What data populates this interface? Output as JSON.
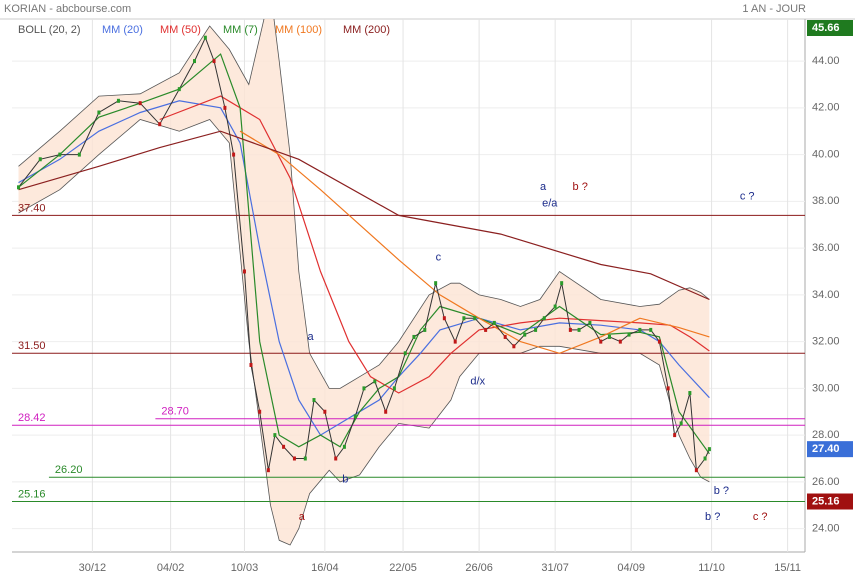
{
  "chart_data": {
    "type": "line",
    "title": "KORIAN - abcbourse.com",
    "period": "1 AN - JOUR",
    "xlim": [
      -37,
      328
    ],
    "ylim": [
      23.0,
      45.8
    ],
    "xticks": [
      {
        "value": 0,
        "label": "30/12"
      },
      {
        "value": 36,
        "label": "04/02"
      },
      {
        "value": 70,
        "label": "10/03"
      },
      {
        "value": 107,
        "label": "16/04"
      },
      {
        "value": 143,
        "label": "22/05"
      },
      {
        "value": 178,
        "label": "26/06"
      },
      {
        "value": 213,
        "label": "31/07"
      },
      {
        "value": 248,
        "label": "04/09"
      },
      {
        "value": 285,
        "label": "11/10"
      },
      {
        "value": 320,
        "label": "15/11"
      }
    ],
    "yticks": [
      {
        "value": 24,
        "label": "24.00"
      },
      {
        "value": 26,
        "label": "26.00"
      },
      {
        "value": 28,
        "label": "28.00"
      },
      {
        "value": 30,
        "label": "30.00"
      },
      {
        "value": 32,
        "label": "32.00"
      },
      {
        "value": 34,
        "label": "34.00"
      },
      {
        "value": 36,
        "label": "36.00"
      },
      {
        "value": 38,
        "label": "38.00"
      },
      {
        "value": 40,
        "label": "40.00"
      },
      {
        "value": 42,
        "label": "42.00"
      },
      {
        "value": 44,
        "label": "44.00"
      }
    ],
    "grid": true,
    "bands": {
      "name": "BOLL (20, 2)",
      "color": "#555555",
      "fill": "#fde3d3",
      "x": [
        -34,
        -15,
        3,
        22,
        40,
        54,
        63,
        72,
        82,
        86,
        91,
        95,
        100,
        109,
        114,
        123,
        132,
        141,
        155,
        165,
        169,
        178,
        188,
        197,
        206,
        215,
        234,
        252,
        261,
        270,
        275,
        280,
        284
      ],
      "upper": [
        39.5,
        41,
        42.5,
        42.6,
        43.5,
        45.5,
        44.5,
        43,
        47,
        44,
        40,
        35,
        31.5,
        30,
        30,
        30.5,
        31,
        32,
        34,
        34.5,
        34.5,
        34,
        33.8,
        33.5,
        33.8,
        35,
        33.8,
        33.5,
        33.6,
        34.2,
        34.3,
        34.1,
        33.8
      ],
      "lower": [
        37.5,
        38.5,
        40,
        41.5,
        41,
        41.5,
        40.5,
        32,
        25,
        23.5,
        23.3,
        24,
        25.5,
        26.5,
        26,
        26.3,
        27.5,
        28.5,
        28.3,
        29.5,
        30.5,
        31.5,
        31.5,
        31.5,
        31.8,
        31.8,
        31.5,
        31.5,
        31,
        28,
        27,
        26.2,
        26
      ]
    },
    "series": [
      {
        "name": "MM (20)",
        "color": "#4a6fe0",
        "x": [
          -34,
          -15,
          3,
          22,
          40,
          59,
          68,
          77,
          86,
          95,
          105,
          114,
          123,
          132,
          141,
          151,
          160,
          178,
          197,
          215,
          234,
          252,
          261,
          270,
          284
        ],
        "values": [
          38.8,
          39.8,
          41.0,
          41.8,
          42.3,
          42.0,
          40.5,
          36,
          32,
          29.5,
          28,
          28.5,
          29,
          29.5,
          30.5,
          31.5,
          32.5,
          33,
          32.5,
          32.8,
          32.7,
          32.5,
          32.0,
          31.0,
          29.6
        ]
      },
      {
        "name": "MM (50)",
        "color": "#e03030",
        "x": [
          31,
          59,
          77,
          91,
          105,
          118,
          128,
          141,
          155,
          165,
          178,
          197,
          215,
          234,
          252,
          266,
          275,
          284
        ],
        "values": [
          41.5,
          42.5,
          41.5,
          39,
          35,
          32,
          30.5,
          29.8,
          30.5,
          31.5,
          32.5,
          32.8,
          33,
          32.9,
          32.8,
          32.7,
          32.2,
          31.6
        ]
      },
      {
        "name": "MM (7)",
        "color": "#2a8a2a",
        "x": [
          -34,
          -15,
          3,
          22,
          40,
          59,
          68,
          77,
          86,
          95,
          105,
          114,
          123,
          132,
          141,
          151,
          160,
          178,
          197,
          215,
          234,
          252,
          261,
          270,
          284
        ],
        "values": [
          38.6,
          40,
          41.6,
          42.2,
          42.8,
          44.3,
          42,
          32,
          28,
          27.5,
          28,
          27.5,
          29,
          30,
          30.5,
          32.5,
          33.5,
          33,
          32.3,
          33.5,
          32.3,
          32.4,
          32.2,
          29,
          27.2
        ]
      },
      {
        "name": "MM (100)",
        "color": "#f07820",
        "x": [
          68,
          86,
          105,
          123,
          141,
          160,
          178,
          197,
          215,
          234,
          252,
          270,
          284
        ],
        "values": [
          41,
          40,
          38.5,
          37,
          35.5,
          34,
          33,
          32,
          31.5,
          32.2,
          33,
          32.6,
          32.2
        ]
      },
      {
        "name": "MM (200)",
        "color": "#8b2020",
        "x": [
          -34,
          3,
          31,
          59,
          95,
          141,
          188,
          234,
          257,
          284
        ],
        "values": [
          38.5,
          39.5,
          40.3,
          41,
          39.8,
          37.4,
          36.6,
          35.3,
          34.9,
          33.8
        ]
      }
    ],
    "price": {
      "color": "#333333",
      "x": [
        -34,
        -24,
        -15,
        -6,
        3,
        12,
        22,
        31,
        40,
        47,
        52,
        56,
        61,
        65,
        70,
        73,
        77,
        81,
        84,
        88,
        93,
        98,
        102,
        107,
        112,
        116,
        121,
        125,
        130,
        135,
        139,
        144,
        148,
        153,
        158,
        162,
        167,
        171,
        176,
        181,
        185,
        190,
        194,
        199,
        204,
        208,
        213,
        216,
        220,
        224,
        229,
        234,
        238,
        243,
        247,
        252,
        257,
        261,
        265,
        268,
        271,
        275,
        278,
        282,
        284
      ],
      "values": [
        38.6,
        39.8,
        40,
        40,
        41.8,
        42.3,
        42.2,
        41.3,
        42.8,
        44,
        45,
        44,
        42,
        40,
        35,
        31,
        29,
        26.5,
        28,
        27.5,
        27,
        27,
        29.5,
        29,
        27,
        27.5,
        28.8,
        30,
        30.3,
        29,
        30,
        31.5,
        32.2,
        32.5,
        34.5,
        33,
        32,
        33,
        33,
        32.5,
        32.8,
        32.2,
        31.8,
        32.3,
        32.5,
        33,
        33.5,
        34.5,
        32.5,
        32.5,
        32.8,
        32,
        32.2,
        32,
        32.3,
        32.5,
        32.5,
        32,
        30,
        28,
        28.5,
        29.8,
        26.5,
        27,
        27.4
      ]
    },
    "levels": [
      {
        "value": 37.4,
        "label": "37.40",
        "color": "#8b1a1a"
      },
      {
        "value": 31.5,
        "label": "31.50",
        "color": "#8b1a1a"
      },
      {
        "value": 28.42,
        "label": "28.42",
        "color": "#d020c0"
      },
      {
        "value": 28.7,
        "label": "28.70",
        "color": "#d020c0",
        "x_start": 29
      },
      {
        "value": 26.2,
        "label": "26.20",
        "color": "#2a8a2a",
        "x_start": -20
      },
      {
        "value": 25.16,
        "label": "25.16",
        "color": "#2a8a2a"
      }
    ],
    "badges": [
      {
        "value": 45.66,
        "label": "45.66",
        "color": "#1f7a1f"
      },
      {
        "value": 27.4,
        "label": "27.40",
        "color": "#3a6fd8"
      },
      {
        "value": 25.16,
        "label": "25.16",
        "color": "#a01010"
      }
    ],
    "annotations": [
      {
        "text": "a",
        "x": 206,
        "y": 38.6,
        "color": "#1a2a8a"
      },
      {
        "text": "b ?",
        "x": 221,
        "y": 38.6,
        "color": "#a01010"
      },
      {
        "text": "e/a",
        "x": 207,
        "y": 37.9,
        "color": "#1a2a8a"
      },
      {
        "text": "c",
        "x": 158,
        "y": 35.6,
        "color": "#1a2a8a"
      },
      {
        "text": "a",
        "x": 99,
        "y": 32.2,
        "color": "#1a2a8a"
      },
      {
        "text": "d/x",
        "x": 174,
        "y": 30.3,
        "color": "#1a2a8a"
      },
      {
        "text": "b",
        "x": 115,
        "y": 26.1,
        "color": "#1a2a8a"
      },
      {
        "text": "a",
        "x": 95,
        "y": 24.5,
        "color": "#a01010"
      },
      {
        "text": "c ?",
        "x": 298,
        "y": 38.2,
        "color": "#1a2a8a"
      },
      {
        "text": "b ?",
        "x": 286,
        "y": 25.6,
        "color": "#1a2a8a"
      },
      {
        "text": "b ?",
        "x": 282,
        "y": 24.5,
        "color": "#1a2a8a"
      },
      {
        "text": "c ?",
        "x": 304,
        "y": 24.5,
        "color": "#a01010"
      }
    ]
  }
}
